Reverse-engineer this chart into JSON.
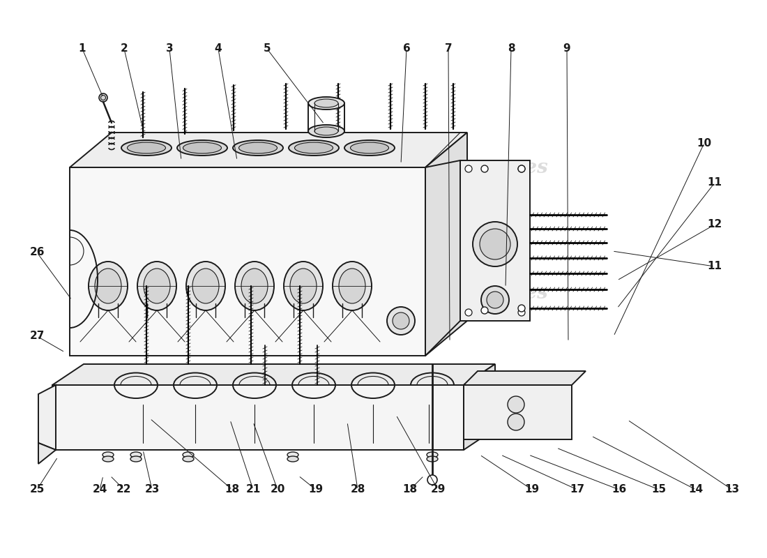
{
  "bg": "#ffffff",
  "lw_main": 1.4,
  "lw_thin": 0.8,
  "lw_leader": 0.7,
  "part_color": "#1a1a1a",
  "fill_light": "#f5f5f5",
  "fill_mid": "#e8e8e8",
  "fill_dark": "#d8d8d8",
  "labels": [
    [
      "1",
      118,
      730
    ],
    [
      "2",
      178,
      730
    ],
    [
      "3",
      243,
      730
    ],
    [
      "4",
      313,
      730
    ],
    [
      "5",
      383,
      730
    ],
    [
      "6",
      583,
      730
    ],
    [
      "7",
      643,
      730
    ],
    [
      "8",
      733,
      730
    ],
    [
      "9",
      813,
      730
    ],
    [
      "10",
      1010,
      595
    ],
    [
      "11",
      1025,
      538
    ],
    [
      "12",
      1025,
      478
    ],
    [
      "11",
      1025,
      418
    ],
    [
      "13",
      1050,
      98
    ],
    [
      "14",
      998,
      98
    ],
    [
      "15",
      945,
      98
    ],
    [
      "16",
      888,
      98
    ],
    [
      "17",
      828,
      98
    ],
    [
      "18",
      333,
      98
    ],
    [
      "18",
      588,
      98
    ],
    [
      "19",
      763,
      98
    ],
    [
      "19",
      453,
      98
    ],
    [
      "20",
      398,
      98
    ],
    [
      "21",
      363,
      98
    ],
    [
      "22",
      178,
      98
    ],
    [
      "23",
      218,
      98
    ],
    [
      "24",
      143,
      98
    ],
    [
      "25",
      53,
      98
    ],
    [
      "26",
      53,
      438
    ],
    [
      "27",
      53,
      318
    ],
    [
      "28",
      513,
      98
    ],
    [
      "29",
      628,
      98
    ]
  ],
  "leaders": [
    [
      "1",
      118,
      730,
      148,
      660
    ],
    [
      "2",
      178,
      730,
      205,
      615
    ],
    [
      "3",
      243,
      730,
      260,
      570
    ],
    [
      "4",
      313,
      730,
      340,
      570
    ],
    [
      "5",
      383,
      730,
      465,
      622
    ],
    [
      "6",
      583,
      730,
      575,
      565
    ],
    [
      "7",
      643,
      730,
      645,
      310
    ],
    [
      "8",
      733,
      730,
      725,
      388
    ],
    [
      "9",
      813,
      730,
      815,
      310
    ],
    [
      "10",
      1010,
      595,
      880,
      318
    ],
    [
      "11",
      1025,
      538,
      885,
      358
    ],
    [
      "12",
      1025,
      478,
      885,
      398
    ],
    [
      "11",
      1025,
      418,
      878,
      440
    ],
    [
      "13",
      1050,
      98,
      900,
      198
    ],
    [
      "14",
      998,
      98,
      848,
      175
    ],
    [
      "15",
      945,
      98,
      798,
      158
    ],
    [
      "16",
      888,
      98,
      758,
      148
    ],
    [
      "17",
      828,
      98,
      718,
      148
    ],
    [
      "18",
      333,
      98,
      215,
      200
    ],
    [
      "18",
      588,
      98,
      608,
      118
    ],
    [
      "19",
      763,
      98,
      688,
      148
    ],
    [
      "19",
      453,
      98,
      428,
      118
    ],
    [
      "20",
      398,
      98,
      363,
      195
    ],
    [
      "21",
      363,
      98,
      330,
      198
    ],
    [
      "22",
      178,
      98,
      158,
      118
    ],
    [
      "23",
      218,
      98,
      205,
      155
    ],
    [
      "24",
      143,
      98,
      148,
      118
    ],
    [
      "25",
      53,
      98,
      83,
      145
    ],
    [
      "26",
      53,
      438,
      103,
      370
    ],
    [
      "27",
      53,
      318,
      93,
      295
    ],
    [
      "28",
      513,
      98,
      498,
      195
    ],
    [
      "29",
      628,
      98,
      568,
      205
    ]
  ]
}
